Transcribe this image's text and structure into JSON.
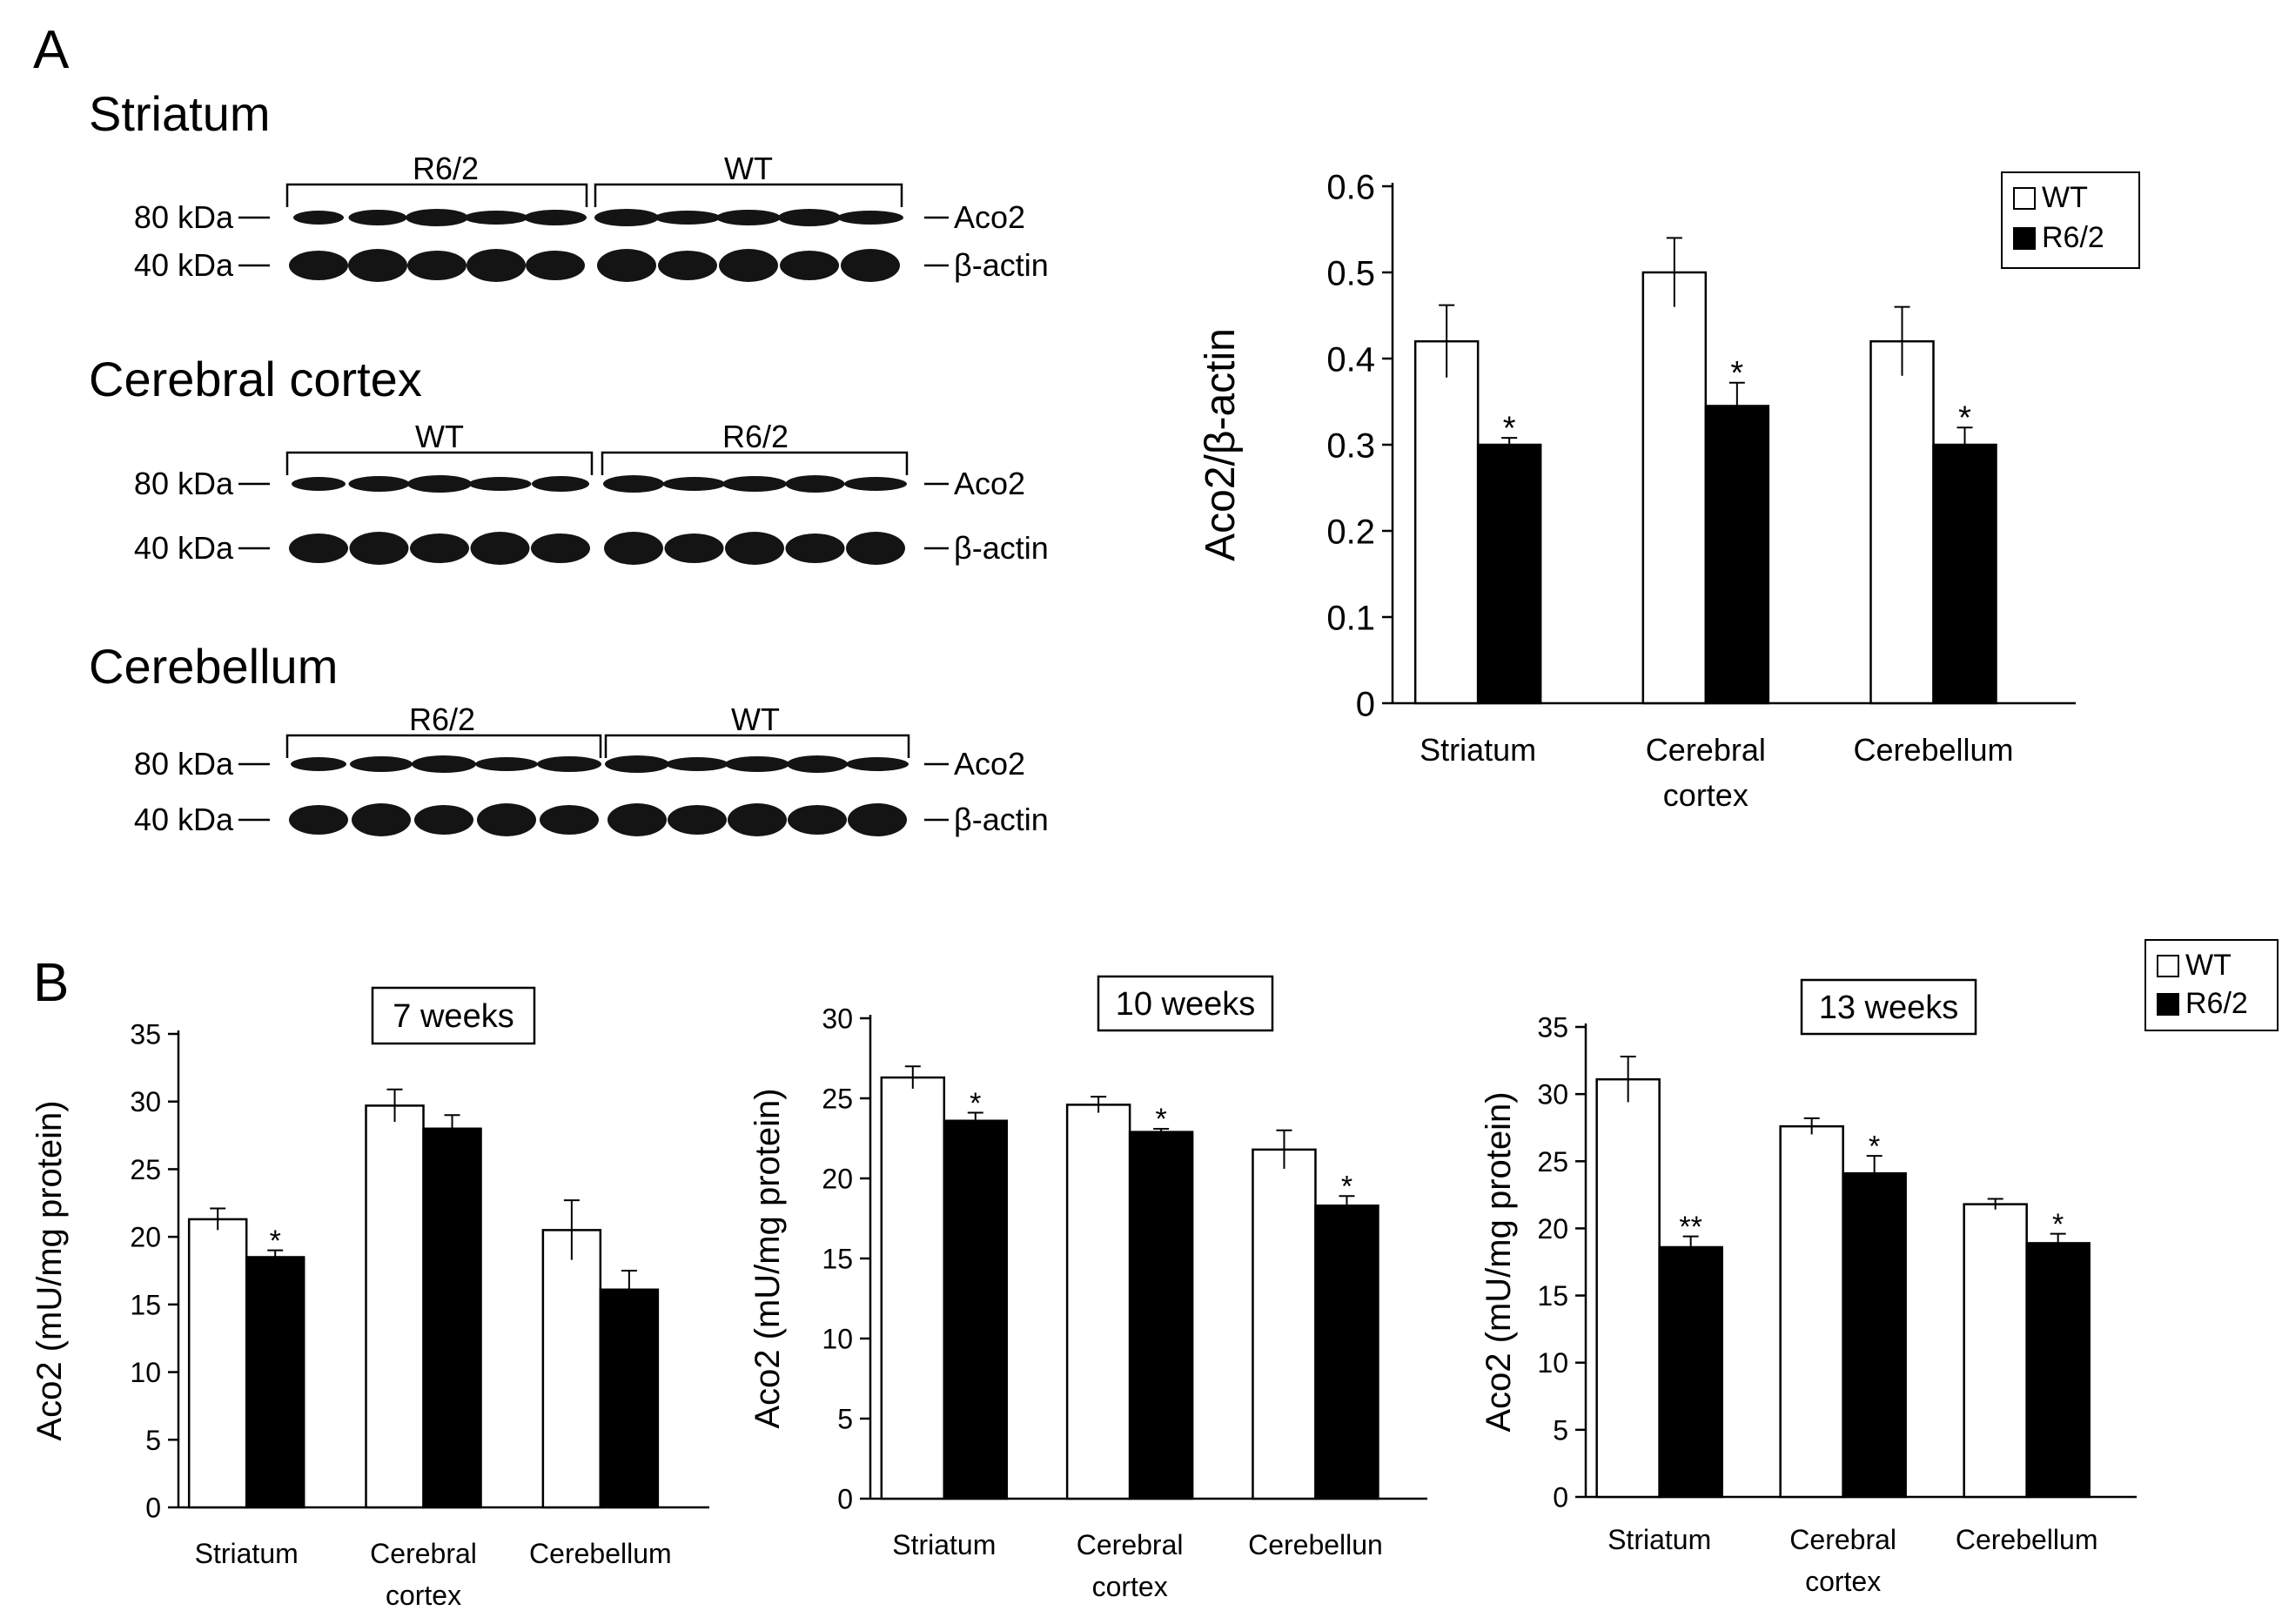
{
  "panel_labels": {
    "a": "A",
    "b": "B"
  },
  "blots": [
    {
      "title": "Striatum",
      "groups": [
        "R6/2",
        "WT"
      ],
      "markers": [
        "80 kDa",
        "40 kDa"
      ],
      "proteins": [
        "Aco2",
        "β-actin"
      ]
    },
    {
      "title": "Cerebral cortex",
      "groups": [
        "WT",
        "R6/2"
      ],
      "markers": [
        "80 kDa",
        "40 kDa"
      ],
      "proteins": [
        "Aco2",
        "β-actin"
      ]
    },
    {
      "title": "Cerebellum",
      "groups": [
        "R6/2",
        "WT"
      ],
      "markers": [
        "80 kDa",
        "40 kDa"
      ],
      "proteins": [
        "Aco2",
        "β-actin"
      ]
    }
  ],
  "colors": {
    "wt": "#ffffff",
    "r62": "#000000",
    "blot_band": "#141414",
    "blot_faint": "#d9d9d9"
  },
  "chart_data": [
    {
      "type": "bar",
      "panel": "A",
      "title": "",
      "ylabel": "Aco2/β-actin",
      "ylim": [
        0,
        0.6
      ],
      "yticks": [
        "0",
        "0.1",
        "0.2",
        "0.3",
        "0.4",
        "0.5",
        "0.6"
      ],
      "ytick_values": [
        0,
        0.1,
        0.2,
        0.3,
        0.4,
        0.5,
        0.6
      ],
      "categories": [
        [
          "Striatum"
        ],
        [
          "Cerebral",
          "cortex"
        ],
        [
          "Cerebellum"
        ]
      ],
      "legend": [
        "WT",
        "R6/2"
      ],
      "legend_position": "top-right",
      "series": [
        {
          "name": "WT",
          "values": [
            0.42,
            0.5,
            0.42
          ],
          "errors": [
            0.042,
            0.04,
            0.04
          ],
          "marks": [
            "",
            "",
            ""
          ]
        },
        {
          "name": "R6/2",
          "values": [
            0.3,
            0.345,
            0.3
          ],
          "errors": [
            0.008,
            0.027,
            0.02
          ],
          "marks": [
            "*",
            "*",
            "*"
          ]
        }
      ]
    },
    {
      "type": "bar",
      "panel": "B",
      "title": "7 weeks",
      "ylabel": "Aco2 (mU/mg protein)",
      "ylim": [
        0,
        35
      ],
      "yticks": [
        "0",
        "5",
        "10",
        "15",
        "20",
        "25",
        "30",
        "35"
      ],
      "ytick_values": [
        0,
        5,
        10,
        15,
        20,
        25,
        30,
        35
      ],
      "categories": [
        [
          "Striatum"
        ],
        [
          "Cerebral",
          "cortex"
        ],
        [
          "Cerebellum"
        ]
      ],
      "legend": [],
      "series": [
        {
          "name": "WT",
          "values": [
            21.3,
            29.7,
            20.5
          ],
          "errors": [
            0.8,
            1.2,
            2.2
          ],
          "marks": [
            "",
            "",
            ""
          ]
        },
        {
          "name": "R6/2",
          "values": [
            18.5,
            28.0,
            16.1
          ],
          "errors": [
            0.5,
            1.0,
            1.4
          ],
          "marks": [
            "*",
            "",
            ""
          ]
        }
      ]
    },
    {
      "type": "bar",
      "panel": "B",
      "title": "10 weeks",
      "ylabel": "Aco2 (mU/mg protein)",
      "ylim": [
        0,
        30
      ],
      "yticks": [
        "0",
        "5",
        "10",
        "15",
        "20",
        "25",
        "30"
      ],
      "ytick_values": [
        0,
        5,
        10,
        15,
        20,
        25,
        30
      ],
      "categories": [
        [
          "Striatum"
        ],
        [
          "Cerebral",
          "cortex"
        ],
        [
          "Cerebellun"
        ]
      ],
      "legend": [],
      "series": [
        {
          "name": "WT",
          "values": [
            26.3,
            24.6,
            21.8
          ],
          "errors": [
            0.7,
            0.5,
            1.2
          ],
          "marks": [
            "",
            "",
            ""
          ]
        },
        {
          "name": "R6/2",
          "values": [
            23.6,
            22.9,
            18.3
          ],
          "errors": [
            0.5,
            0.2,
            0.6
          ],
          "marks": [
            "*",
            "*",
            "*"
          ]
        }
      ]
    },
    {
      "type": "bar",
      "panel": "B",
      "title": "13 weeks",
      "ylabel": "Aco2 (mU/mg protein)",
      "ylim": [
        0,
        35
      ],
      "yticks": [
        "0",
        "5",
        "10",
        "15",
        "20",
        "25",
        "30",
        "35"
      ],
      "ytick_values": [
        0,
        5,
        10,
        15,
        20,
        25,
        30,
        35
      ],
      "categories": [
        [
          "Striatum"
        ],
        [
          "Cerebral",
          "cortex"
        ],
        [
          "Cerebellum"
        ]
      ],
      "legend": [
        "WT",
        "R6/2"
      ],
      "legend_position": "top-right",
      "series": [
        {
          "name": "WT",
          "values": [
            31.1,
            27.6,
            21.8
          ],
          "errors": [
            1.7,
            0.6,
            0.4
          ],
          "marks": [
            "",
            "",
            ""
          ]
        },
        {
          "name": "R6/2",
          "values": [
            18.6,
            24.1,
            18.9
          ],
          "errors": [
            0.8,
            1.3,
            0.7
          ],
          "marks": [
            "**",
            "*",
            "*"
          ]
        }
      ]
    }
  ]
}
